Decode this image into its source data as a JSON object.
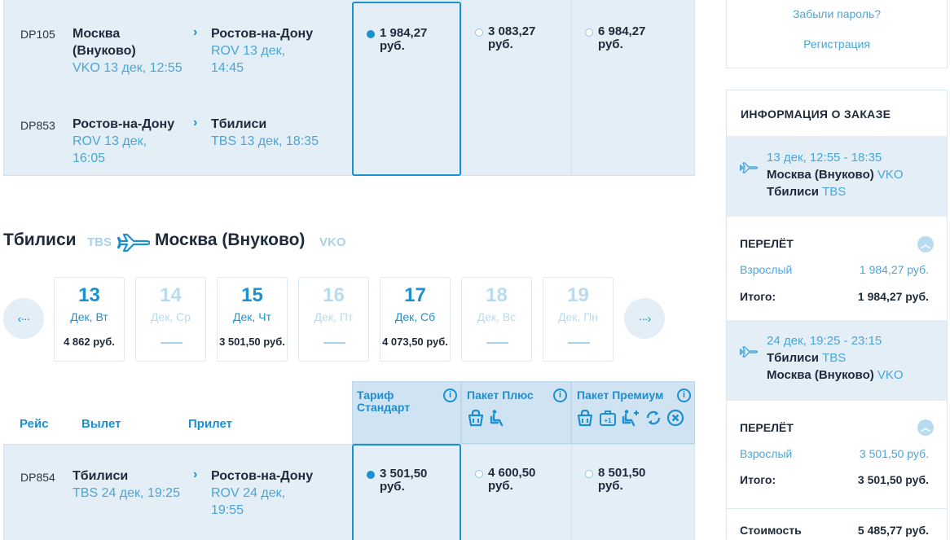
{
  "outbound": {
    "flights": [
      {
        "number": "DP105",
        "from_city_1": "Москва",
        "from_city_2": "(Внуково)",
        "from_time": "VKO 13 дек, 12:55",
        "to_city": "Ростов-на-Дону",
        "to_time_1": "ROV 13 дек,",
        "to_time_2": "14:45"
      },
      {
        "number": "DP853",
        "from_city_1": "Ростов-на-Дону",
        "from_time_1": "ROV 13 дек,",
        "from_time_2": "16:05",
        "to_city": "Тбилиси",
        "to_time": "TBS 13 дек, 18:35"
      }
    ],
    "fares": [
      {
        "price_1": "1 984,27",
        "price_2": "руб.",
        "selected": true
      },
      {
        "price_1": "3 083,27",
        "price_2": "руб.",
        "selected": false
      },
      {
        "price_1": "6 984,27",
        "price_2": "руб.",
        "selected": false
      }
    ]
  },
  "return_heading": {
    "from_city": "Тбилиси",
    "from_code": "TBS",
    "to_city": "Москва (Внуково)",
    "to_code": "VKO"
  },
  "dates": [
    {
      "day": "13",
      "label": "Дек, Вт",
      "price": "4 862 руб.",
      "available": true
    },
    {
      "day": "14",
      "label": "Дек, Ср",
      "price": "",
      "available": false
    },
    {
      "day": "15",
      "label": "Дек, Чт",
      "price": "3 501,50 руб.",
      "available": true
    },
    {
      "day": "16",
      "label": "Дек, Пт",
      "price": "",
      "available": false
    },
    {
      "day": "17",
      "label": "Дек, Сб",
      "price": "4 073,50 руб.",
      "available": true
    },
    {
      "day": "18",
      "label": "Дек, Вс",
      "price": "",
      "available": false
    },
    {
      "day": "19",
      "label": "Дек, Пн",
      "price": "",
      "available": false
    }
  ],
  "table_header": {
    "flight": "Рейс",
    "departure": "Вылет",
    "arrival": "Прилет",
    "tariffs": [
      {
        "line_1": "Тариф",
        "line_2": "Стандарт"
      },
      {
        "line_1": "Пакет Плюс",
        "line_2": ""
      },
      {
        "line_1": "Пакет Премиум",
        "line_2": ""
      }
    ],
    "plus_icons": [
      "bag-icon",
      "seat-icon"
    ],
    "premium_icons": [
      "bag-icon",
      "extra-bag-icon",
      "seat-plus-icon",
      "refresh-icon",
      "cancel-icon"
    ]
  },
  "return_flight": {
    "number": "DP854",
    "from_city": "Тбилиси",
    "from_time": "TBS 24 дек, 19:25",
    "to_city": "Ростов-на-Дону",
    "to_time_1": "ROV 24 дек,",
    "to_time_2": "19:55",
    "fares": [
      {
        "price_1": "3 501,50",
        "price_2": "руб.",
        "selected": true
      },
      {
        "price_1": "4 600,50",
        "price_2": "руб.",
        "selected": false
      },
      {
        "price_1": "8 501,50",
        "price_2": "руб.",
        "selected": false
      }
    ]
  },
  "auth": {
    "forgot": "Забыли пароль?",
    "register": "Регистрация"
  },
  "order": {
    "title": "ИНФОРМАЦИЯ О ЗАКАЗЕ",
    "segments": [
      {
        "time": "13 дек, 12:55 - 18:35",
        "from_city": "Москва (Внуково)",
        "from_code": "VKO",
        "to_city": "Тбилиси",
        "to_code": "TBS",
        "section": "ПЕРЕЛЁТ",
        "adult_label": "Взрослый",
        "adult_price": "1 984,27 руб.",
        "total_label": "Итого:",
        "total_price": "1 984,27 руб."
      },
      {
        "time": "24 дек, 19:25 - 23:15",
        "from_city": "Тбилиси",
        "from_code": "TBS",
        "to_city": "Москва (Внуково)",
        "to_code": "VKO",
        "section": "ПЕРЕЛЁТ",
        "adult_label": "Взрослый",
        "adult_price": "3 501,50 руб.",
        "total_label": "Итого:",
        "total_price": "3 501,50 руб."
      }
    ],
    "cost_label": "Стоимость",
    "cost_value": "5 485,77 руб."
  },
  "colors": {
    "accent": "#1a91d1",
    "light_bg": "#e4eef7",
    "link": "#4aa6d6"
  }
}
